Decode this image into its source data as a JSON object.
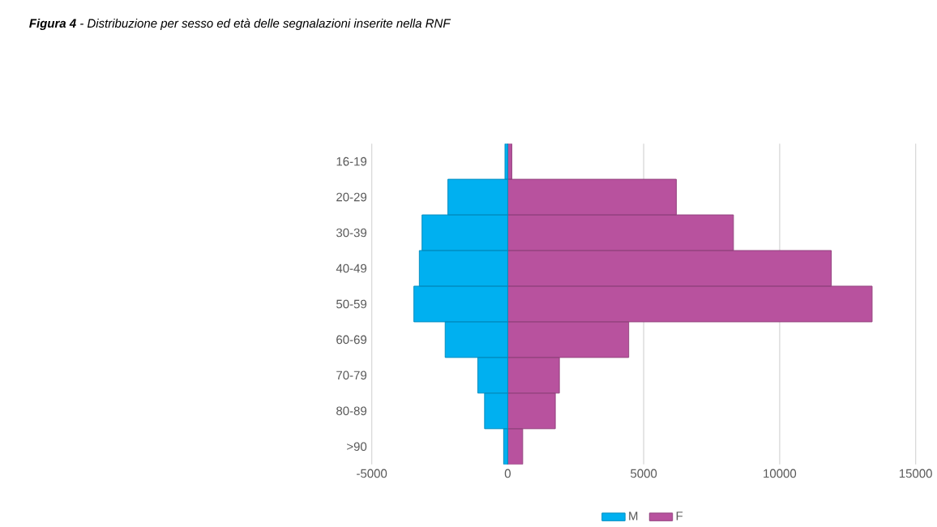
{
  "chart_data": {
    "type": "bar",
    "orientation": "horizontal",
    "title": "**Figura 4** - Distribuzione per sesso ed età delle segnalazioni inserite nella RNF",
    "categories": [
      "16-19",
      "20-29",
      "30-39",
      "40-49",
      "50-59",
      "60-69",
      "70-79",
      "80-89",
      ">90"
    ],
    "series": [
      {
        "name": "M",
        "color": "#00b0f0",
        "values": [
          -100,
          -2200,
          -3150,
          -3250,
          -3450,
          -2300,
          -1100,
          -850,
          -150
        ]
      },
      {
        "name": "F",
        "color": "#b8529e",
        "values": [
          150,
          6200,
          8300,
          11900,
          13400,
          4450,
          1900,
          1750,
          550
        ]
      }
    ],
    "stacked": true,
    "xlim": [
      -5000,
      15000
    ],
    "xticks": [
      -5000,
      0,
      5000,
      10000,
      15000
    ],
    "grid": "x",
    "legend": "bottom"
  }
}
